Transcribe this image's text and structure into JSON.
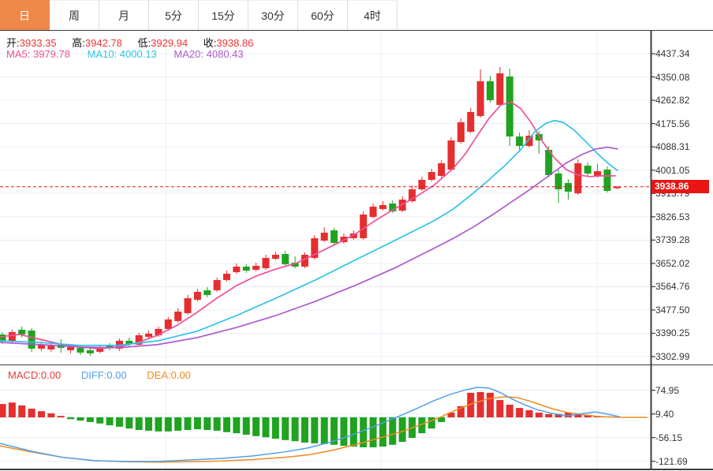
{
  "tabs": {
    "items": [
      {
        "name": "tab-day",
        "label": "日",
        "active": true
      },
      {
        "name": "tab-week",
        "label": "周",
        "active": false
      },
      {
        "name": "tab-month",
        "label": "月",
        "active": false
      },
      {
        "name": "tab-5min",
        "label": "5分",
        "active": false
      },
      {
        "name": "tab-15min",
        "label": "15分",
        "active": false
      },
      {
        "name": "tab-30min",
        "label": "30分",
        "active": false
      },
      {
        "name": "tab-60min",
        "label": "60分",
        "active": false
      },
      {
        "name": "tab-4hour",
        "label": "4时",
        "active": false
      }
    ]
  },
  "ohlc": {
    "items": [
      {
        "label": "开:",
        "value": "3933.35"
      },
      {
        "label": "高:",
        "value": "3942.78"
      },
      {
        "label": "低:",
        "value": "3929.94"
      },
      {
        "label": "收:",
        "value": "3938.86"
      }
    ],
    "value_color": "#f03333"
  },
  "ma": {
    "items": [
      {
        "label": "MA5:",
        "value": "3979.78",
        "color": "#ef4f97"
      },
      {
        "label": "MA10:",
        "value": "4000.13",
        "color": "#2fc2e4"
      },
      {
        "label": "MA20:",
        "value": "4080.43",
        "color": "#ae59cc"
      }
    ]
  },
  "macd_header": {
    "items": [
      {
        "label": "MACD:",
        "value": "0.00",
        "color": "#e23c3c"
      },
      {
        "label": "DIFF:",
        "value": "0.00",
        "color": "#52a0e8"
      },
      {
        "label": "DEA:",
        "value": "0.00",
        "color": "#f08a20"
      }
    ]
  },
  "price_axis": {
    "ticks": [
      "4437.34",
      "4350.08",
      "4262.82",
      "4175.56",
      "4088.31",
      "4001.05",
      "3913.79",
      "3826.53",
      "3739.28",
      "3652.02",
      "3564.76",
      "3477.50",
      "3390.25",
      "3302.99"
    ],
    "current": "3938.86"
  },
  "macd_axis": {
    "ticks": [
      "74.95",
      "9.40",
      "-56.15",
      "-121.69"
    ]
  },
  "colors": {
    "up": "#e52e2e",
    "down": "#20a320",
    "badge_bg": "#ea1515",
    "current_line": "#ea1515",
    "tab_active_bg": "#f0884a",
    "grid": "#e7edf6",
    "frame": "#3c3c3c",
    "macd_zero_line": "#9adcef",
    "diff_line": "#52a0e8",
    "dea_line": "#f08a20"
  },
  "chart_data": {
    "type": "candlestick",
    "title": "",
    "panels": [
      "price_with_ma",
      "macd"
    ],
    "main": {
      "ylim": [
        3302.99,
        4437.34
      ],
      "axis_ticks": [
        4437.34,
        4350.08,
        4262.82,
        4175.56,
        4088.31,
        4001.05,
        3913.79,
        3826.53,
        3739.28,
        3652.02,
        3564.76,
        3477.5,
        3390.25,
        3302.99
      ],
      "current_price": 3938.86,
      "candles_ohlc": [
        [
          3386.0,
          3394.8,
          3350.5,
          3359.4
        ],
        [
          3362.3,
          3403.7,
          3353.5,
          3394.8
        ],
        [
          3403.7,
          3415.5,
          3374.2,
          3386.0
        ],
        [
          3400.7,
          3409.6,
          3321.0,
          3332.8
        ],
        [
          3332.8,
          3356.4,
          3324.0,
          3347.6
        ],
        [
          3329.9,
          3350.5,
          3321.0,
          3344.6
        ],
        [
          3347.6,
          3368.2,
          3318.1,
          3335.8
        ],
        [
          3326.9,
          3347.6,
          3315.1,
          3338.7
        ],
        [
          3335.8,
          3344.6,
          3309.2,
          3318.1
        ],
        [
          3326.9,
          3335.8,
          3306.2,
          3315.1
        ],
        [
          3321.0,
          3347.6,
          3315.1,
          3338.7
        ],
        [
          3344.6,
          3353.5,
          3326.9,
          3335.8
        ],
        [
          3332.8,
          3371.2,
          3324.0,
          3362.3
        ],
        [
          3362.3,
          3374.2,
          3341.7,
          3350.5
        ],
        [
          3347.6,
          3391.9,
          3341.7,
          3383.0
        ],
        [
          3377.1,
          3400.7,
          3368.2,
          3388.9
        ],
        [
          3383.0,
          3415.5,
          3377.1,
          3406.6
        ],
        [
          3406.6,
          3450.9,
          3400.7,
          3442.1
        ],
        [
          3436.2,
          3483.4,
          3430.3,
          3471.6
        ],
        [
          3465.7,
          3533.6,
          3459.8,
          3521.8
        ],
        [
          3515.9,
          3557.2,
          3510.0,
          3545.4
        ],
        [
          3551.3,
          3563.1,
          3524.7,
          3533.6
        ],
        [
          3551.3,
          3598.6,
          3545.4,
          3589.7
        ],
        [
          3589.7,
          3625.1,
          3583.8,
          3613.3
        ],
        [
          3619.2,
          3651.7,
          3613.3,
          3639.9
        ],
        [
          3639.9,
          3648.8,
          3616.3,
          3625.1
        ],
        [
          3628.1,
          3654.7,
          3622.2,
          3642.9
        ],
        [
          3634.0,
          3684.2,
          3628.1,
          3672.4
        ],
        [
          3669.4,
          3696.0,
          3663.5,
          3684.2
        ],
        [
          3687.2,
          3699.0,
          3642.9,
          3648.8
        ],
        [
          3654.7,
          3678.3,
          3634.0,
          3639.9
        ],
        [
          3639.9,
          3693.1,
          3634.0,
          3684.2
        ],
        [
          3672.4,
          3758.1,
          3666.5,
          3746.3
        ],
        [
          3737.4,
          3787.6,
          3731.5,
          3767.0
        ],
        [
          3775.8,
          3784.7,
          3722.6,
          3728.5
        ],
        [
          3731.5,
          3764.0,
          3725.6,
          3752.2
        ],
        [
          3746.3,
          3775.8,
          3740.4,
          3764.0
        ],
        [
          3746.3,
          3846.7,
          3740.4,
          3834.9
        ],
        [
          3826.0,
          3876.2,
          3820.1,
          3864.4
        ],
        [
          3855.5,
          3885.1,
          3849.6,
          3870.3
        ],
        [
          3876.2,
          3888.0,
          3840.8,
          3846.7
        ],
        [
          3849.6,
          3902.8,
          3843.7,
          3891.0
        ],
        [
          3885.1,
          3944.1,
          3879.2,
          3929.3
        ],
        [
          3929.3,
          3976.6,
          3923.4,
          3964.8
        ],
        [
          3964.8,
          4006.1,
          3958.9,
          3994.3
        ],
        [
          3979.5,
          4038.6,
          3973.6,
          4026.8
        ],
        [
          4003.2,
          4124.2,
          3997.3,
          4112.4
        ],
        [
          4106.5,
          4195.1,
          4100.6,
          4180.3
        ],
        [
          4144.9,
          4233.5,
          4139.0,
          4218.7
        ],
        [
          4203.9,
          4378.3,
          4198.0,
          4333.9
        ],
        [
          4333.9,
          4354.6,
          4254.2,
          4263.1
        ],
        [
          4245.3,
          4387.1,
          4239.4,
          4363.5
        ],
        [
          4351.7,
          4381.2,
          4091.7,
          4127.2
        ],
        [
          4127.2,
          4141.9,
          4077.0,
          4091.7
        ],
        [
          4091.7,
          4150.8,
          4085.8,
          4130.1
        ],
        [
          4136.0,
          4147.8,
          4062.2,
          4112.4
        ],
        [
          4077.0,
          4091.7,
          3973.6,
          3982.5
        ],
        [
          3988.4,
          4003.2,
          3879.2,
          3929.3
        ],
        [
          3953.0,
          3967.7,
          3891.0,
          3920.5
        ],
        [
          3914.6,
          4041.5,
          3908.7,
          4026.8
        ],
        [
          4017.9,
          4029.7,
          3979.5,
          3988.4
        ],
        [
          3979.5,
          4023.8,
          3973.6,
          3997.3
        ],
        [
          4003.2,
          4015.0,
          3917.5,
          3923.4
        ],
        [
          3933.35,
          3942.78,
          3929.94,
          3938.86
        ]
      ],
      "ma5": [
        [
          0,
          3377
        ],
        [
          25,
          3386
        ],
        [
          50,
          3368
        ],
        [
          75,
          3351
        ],
        [
          100,
          3339
        ],
        [
          125,
          3333
        ],
        [
          150,
          3339
        ],
        [
          175,
          3356
        ],
        [
          200,
          3383
        ],
        [
          225,
          3421
        ],
        [
          250,
          3469
        ],
        [
          275,
          3522
        ],
        [
          300,
          3569
        ],
        [
          325,
          3605
        ],
        [
          350,
          3631
        ],
        [
          375,
          3652
        ],
        [
          400,
          3687
        ],
        [
          425,
          3723
        ],
        [
          450,
          3761
        ],
        [
          475,
          3811
        ],
        [
          500,
          3856
        ],
        [
          525,
          3897
        ],
        [
          550,
          3944
        ],
        [
          575,
          4009
        ],
        [
          590,
          4062
        ],
        [
          605,
          4130
        ],
        [
          620,
          4195
        ],
        [
          635,
          4245
        ],
        [
          648,
          4256
        ],
        [
          660,
          4232
        ],
        [
          673,
          4181
        ],
        [
          688,
          4107
        ],
        [
          703,
          4047
        ],
        [
          718,
          4003
        ],
        [
          733,
          3983
        ],
        [
          748,
          3977
        ],
        [
          764,
          3980
        ],
        [
          780,
          3979.78
        ]
      ],
      "ma10": [
        [
          0,
          3362
        ],
        [
          50,
          3356
        ],
        [
          100,
          3345
        ],
        [
          150,
          3345
        ],
        [
          200,
          3362
        ],
        [
          250,
          3398
        ],
        [
          300,
          3457
        ],
        [
          350,
          3522
        ],
        [
          400,
          3590
        ],
        [
          450,
          3664
        ],
        [
          500,
          3737
        ],
        [
          550,
          3811
        ],
        [
          575,
          3856
        ],
        [
          600,
          3915
        ],
        [
          620,
          3965
        ],
        [
          640,
          4018
        ],
        [
          660,
          4077
        ],
        [
          678,
          4145
        ],
        [
          692,
          4176
        ],
        [
          703,
          4187
        ],
        [
          714,
          4180
        ],
        [
          728,
          4151
        ],
        [
          743,
          4107
        ],
        [
          758,
          4062
        ],
        [
          772,
          4024
        ],
        [
          783,
          4000.13
        ]
      ],
      "ma20": [
        [
          0,
          3356
        ],
        [
          50,
          3348
        ],
        [
          100,
          3339
        ],
        [
          150,
          3336
        ],
        [
          200,
          3348
        ],
        [
          250,
          3374
        ],
        [
          300,
          3412
        ],
        [
          350,
          3457
        ],
        [
          400,
          3510
        ],
        [
          450,
          3569
        ],
        [
          500,
          3634
        ],
        [
          550,
          3708
        ],
        [
          575,
          3746
        ],
        [
          600,
          3788
        ],
        [
          625,
          3835
        ],
        [
          650,
          3885
        ],
        [
          675,
          3935
        ],
        [
          698,
          3985
        ],
        [
          718,
          4028
        ],
        [
          738,
          4060
        ],
        [
          755,
          4080
        ],
        [
          770,
          4087
        ],
        [
          783,
          4080.43
        ]
      ]
    },
    "macd": {
      "ylim": [
        -121.69,
        74.95
      ],
      "axis_ticks": [
        74.95,
        9.4,
        -56.15,
        -121.69
      ],
      "histogram": [
        37,
        41,
        33,
        24,
        17,
        11,
        4,
        -5,
        -9,
        -13,
        -17,
        -22,
        -26,
        -31,
        -35,
        -37,
        -39,
        -39,
        -37,
        -35,
        -33,
        -35,
        -37,
        -41,
        -44,
        -48,
        -52,
        -55,
        -59,
        -63,
        -66,
        -70,
        -72,
        -74,
        -76,
        -79,
        -81,
        -83,
        -83,
        -81,
        -76,
        -68,
        -57,
        -44,
        -31,
        -13,
        13,
        31,
        68,
        70,
        68,
        48,
        35,
        26,
        20,
        13,
        9,
        9,
        13,
        11,
        7,
        4,
        2,
        1
      ],
      "diff": [
        [
          0,
          -72
        ],
        [
          40,
          -94
        ],
        [
          80,
          -111
        ],
        [
          120,
          -120
        ],
        [
          160,
          -122
        ],
        [
          200,
          -122
        ],
        [
          240,
          -118
        ],
        [
          280,
          -114
        ],
        [
          320,
          -107
        ],
        [
          360,
          -96
        ],
        [
          390,
          -85
        ],
        [
          420,
          -68
        ],
        [
          450,
          -46
        ],
        [
          480,
          -20
        ],
        [
          510,
          7
        ],
        [
          530,
          26
        ],
        [
          550,
          46
        ],
        [
          570,
          63
        ],
        [
          590,
          76
        ],
        [
          605,
          83
        ],
        [
          620,
          81
        ],
        [
          635,
          68
        ],
        [
          650,
          50
        ],
        [
          665,
          35
        ],
        [
          680,
          22
        ],
        [
          700,
          11
        ],
        [
          720,
          4
        ],
        [
          740,
          11
        ],
        [
          755,
          15
        ],
        [
          770,
          9
        ],
        [
          785,
          2
        ]
      ],
      "dea": [
        [
          0,
          -79
        ],
        [
          40,
          -96
        ],
        [
          80,
          -111
        ],
        [
          120,
          -120
        ],
        [
          160,
          -123
        ],
        [
          200,
          -124
        ],
        [
          240,
          -123
        ],
        [
          280,
          -121
        ],
        [
          320,
          -117
        ],
        [
          360,
          -111
        ],
        [
          390,
          -104
        ],
        [
          420,
          -92
        ],
        [
          450,
          -76
        ],
        [
          480,
          -58
        ],
        [
          510,
          -39
        ],
        [
          540,
          -15
        ],
        [
          560,
          2
        ],
        [
          580,
          22
        ],
        [
          600,
          39
        ],
        [
          620,
          52
        ],
        [
          640,
          57
        ],
        [
          655,
          55
        ],
        [
          670,
          46
        ],
        [
          685,
          35
        ],
        [
          700,
          24
        ],
        [
          720,
          13
        ],
        [
          740,
          7
        ],
        [
          760,
          2
        ],
        [
          790,
          0
        ],
        [
          820,
          0
        ]
      ]
    }
  }
}
